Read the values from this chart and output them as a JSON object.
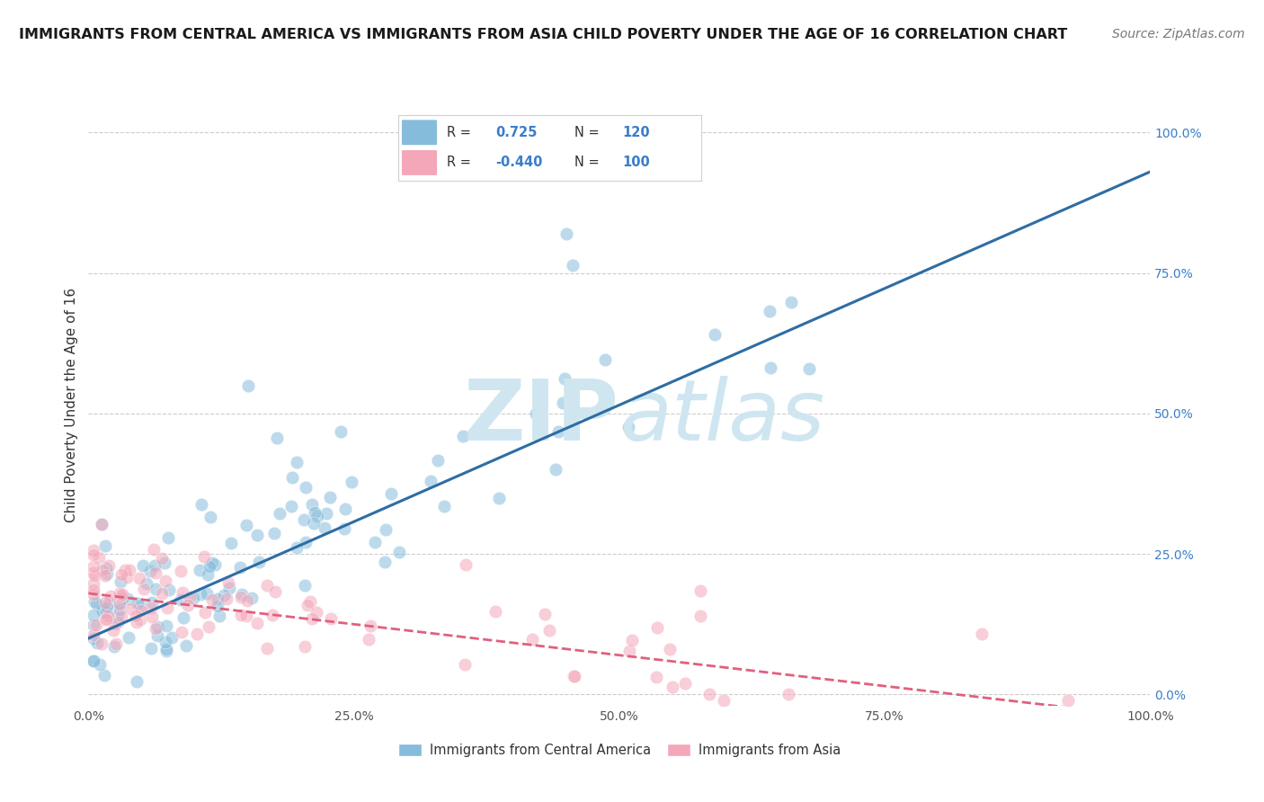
{
  "title": "IMMIGRANTS FROM CENTRAL AMERICA VS IMMIGRANTS FROM ASIA CHILD POVERTY UNDER THE AGE OF 16 CORRELATION CHART",
  "source": "Source: ZipAtlas.com",
  "ylabel": "Child Poverty Under the Age of 16",
  "blue_label": "Immigrants from Central America",
  "pink_label": "Immigrants from Asia",
  "blue_R": 0.725,
  "blue_N": 120,
  "pink_R": -0.44,
  "pink_N": 100,
  "blue_color": "#85bcdb",
  "pink_color": "#f4a7b9",
  "blue_line_color": "#2e6da4",
  "pink_line_color": "#e0607e",
  "bg_color": "#ffffff",
  "watermark_color": "#cfe6f0",
  "xlim": [
    0.0,
    1.0
  ],
  "ylim": [
    -0.02,
    1.05
  ],
  "right_yticks": [
    0.0,
    0.25,
    0.5,
    0.75,
    1.0
  ],
  "right_yticklabels": [
    "0.0%",
    "25.0%",
    "50.0%",
    "75.0%",
    "100.0%"
  ],
  "xtick_vals": [
    0.0,
    0.25,
    0.5,
    0.75,
    1.0
  ],
  "xtick_labels": [
    "0.0%",
    "25.0%",
    "50.0%",
    "75.0%",
    "100.0%"
  ],
  "blue_line_x0": 0.0,
  "blue_line_x1": 1.0,
  "blue_line_y0": 0.1,
  "blue_line_y1": 0.93,
  "pink_line_x0": 0.0,
  "pink_line_x1": 1.0,
  "pink_line_y0": 0.18,
  "pink_line_y1": -0.04,
  "title_fontsize": 11.5,
  "source_fontsize": 10,
  "tick_fontsize": 10,
  "ylabel_fontsize": 11
}
